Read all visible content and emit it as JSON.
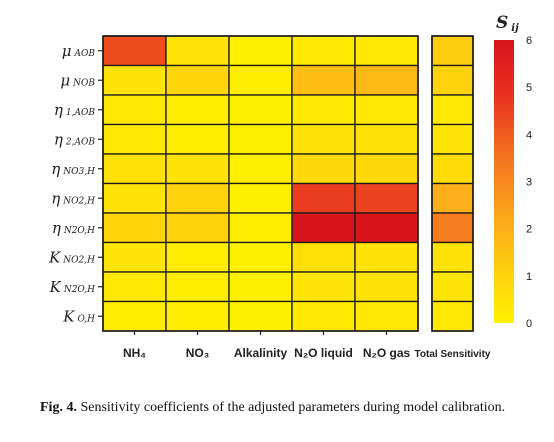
{
  "chart_data": {
    "type": "heatmap",
    "rows": [
      {
        "sym": "μ",
        "sub": "AOB"
      },
      {
        "sym": "μ",
        "sub": "NOB"
      },
      {
        "sym": "η",
        "sub": "1,AOB"
      },
      {
        "sym": "η",
        "sub": "2,AOB"
      },
      {
        "sym": "η",
        "sub": "NO3,H"
      },
      {
        "sym": "η",
        "sub": "NO2,H"
      },
      {
        "sym": "η",
        "sub": "N2O,H"
      },
      {
        "sym": "K",
        "sub": "NO2,H"
      },
      {
        "sym": "K",
        "sub": "N2O,H"
      },
      {
        "sym": "K",
        "sub": "O,H"
      }
    ],
    "columns": [
      "NH₄",
      "NO₃",
      "Alkalinity",
      "N₂O liquid",
      "N₂O gas"
    ],
    "total_column": "Total Sensitivity",
    "values": [
      [
        4.3,
        0.4,
        0.1,
        0.3,
        0.3
      ],
      [
        0.5,
        0.9,
        0.2,
        1.6,
        1.8
      ],
      [
        0.3,
        0.2,
        0.1,
        0.3,
        0.3
      ],
      [
        0.3,
        0.2,
        0.1,
        0.5,
        0.5
      ],
      [
        0.6,
        0.5,
        0.1,
        0.8,
        0.8
      ],
      [
        0.5,
        1.0,
        0.1,
        4.6,
        4.5
      ],
      [
        0.9,
        1.0,
        0.2,
        6.0,
        6.0
      ],
      [
        0.4,
        0.2,
        0.1,
        0.6,
        0.5
      ],
      [
        0.3,
        0.2,
        0.1,
        0.4,
        0.5
      ],
      [
        0.2,
        0.2,
        0.1,
        0.3,
        0.3
      ]
    ],
    "total_values": [
      1.2,
      1.0,
      0.3,
      0.4,
      0.7,
      2.0,
      3.3,
      0.5,
      0.4,
      0.3
    ],
    "colorbar": {
      "title_sym": "S",
      "title_sub": "ij",
      "min": 0,
      "max": 6,
      "ticks": [
        0,
        1,
        2,
        3,
        4,
        5,
        6
      ],
      "colors": [
        "#fff200",
        "#ffcc10",
        "#fba11c",
        "#f37020",
        "#e8331f",
        "#d7141b"
      ]
    }
  },
  "caption": {
    "label": "Fig. 4.",
    "text": "Sensitivity coefficients of the adjusted parameters during model calibration."
  }
}
